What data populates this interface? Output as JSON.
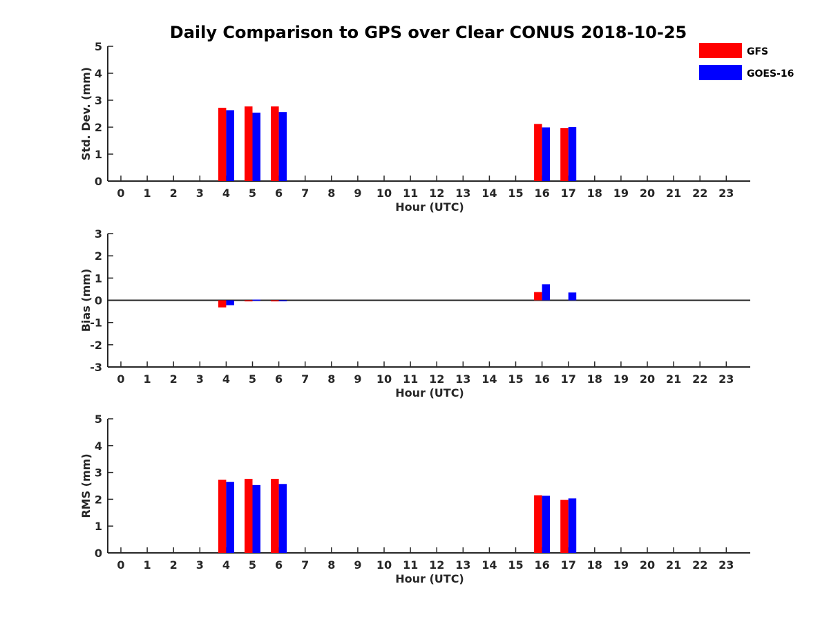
{
  "chart_data": {
    "title": "Daily Comparison to GPS over Clear CONUS 2018-10-25",
    "legend": {
      "placement": "top-right",
      "entries": [
        {
          "name": "GFS",
          "color": "#ff0000"
        },
        {
          "name": "GOES-16",
          "color": "#0000ff"
        }
      ]
    },
    "panels": [
      {
        "id": "std",
        "type": "bar",
        "xlabel": "Hour (UTC)",
        "ylabel": "Std. Dev. (mm)",
        "ylim": [
          0,
          5
        ],
        "yticks": [
          0,
          1,
          2,
          3,
          4,
          5
        ],
        "categories": [
          "0",
          "1",
          "2",
          "3",
          "4",
          "5",
          "6",
          "7",
          "8",
          "9",
          "10",
          "11",
          "12",
          "13",
          "14",
          "15",
          "16",
          "17",
          "18",
          "19",
          "20",
          "21",
          "22",
          "23"
        ],
        "series": [
          {
            "name": "GFS",
            "color": "#ff0000",
            "values": [
              null,
              null,
              null,
              null,
              2.72,
              2.77,
              2.77,
              null,
              null,
              null,
              null,
              null,
              null,
              null,
              null,
              null,
              2.12,
              1.97,
              null,
              null,
              null,
              null,
              null,
              null
            ]
          },
          {
            "name": "GOES-16",
            "color": "#0000ff",
            "values": [
              null,
              null,
              null,
              null,
              2.63,
              2.54,
              2.56,
              null,
              null,
              null,
              null,
              null,
              null,
              null,
              null,
              null,
              1.99,
              2.0,
              null,
              null,
              null,
              null,
              null,
              null
            ]
          }
        ]
      },
      {
        "id": "bias",
        "type": "bar",
        "xlabel": "Hour (UTC)",
        "ylabel": "Bias (mm)",
        "ylim": [
          -3,
          3
        ],
        "yticks": [
          -3,
          -2,
          -1,
          0,
          1,
          2,
          3
        ],
        "categories": [
          "0",
          "1",
          "2",
          "3",
          "4",
          "5",
          "6",
          "7",
          "8",
          "9",
          "10",
          "11",
          "12",
          "13",
          "14",
          "15",
          "16",
          "17",
          "18",
          "19",
          "20",
          "21",
          "22",
          "23"
        ],
        "series": [
          {
            "name": "GFS",
            "color": "#ff0000",
            "values": [
              null,
              null,
              null,
              null,
              -0.32,
              -0.05,
              -0.05,
              null,
              null,
              null,
              null,
              null,
              null,
              null,
              null,
              null,
              0.37,
              0.0,
              null,
              null,
              null,
              null,
              null,
              null
            ]
          },
          {
            "name": "GOES-16",
            "color": "#0000ff",
            "values": [
              null,
              null,
              null,
              null,
              -0.22,
              0.03,
              -0.02,
              null,
              null,
              null,
              null,
              null,
              null,
              null,
              null,
              null,
              0.72,
              0.35,
              null,
              null,
              null,
              null,
              null,
              null
            ]
          }
        ]
      },
      {
        "id": "rms",
        "type": "bar",
        "xlabel": "Hour (UTC)",
        "ylabel": "RMS (mm)",
        "ylim": [
          0,
          5
        ],
        "yticks": [
          0,
          1,
          2,
          3,
          4,
          5
        ],
        "categories": [
          "0",
          "1",
          "2",
          "3",
          "4",
          "5",
          "6",
          "7",
          "8",
          "9",
          "10",
          "11",
          "12",
          "13",
          "14",
          "15",
          "16",
          "17",
          "18",
          "19",
          "20",
          "21",
          "22",
          "23"
        ],
        "series": [
          {
            "name": "GFS",
            "color": "#ff0000",
            "values": [
              null,
              null,
              null,
              null,
              2.73,
              2.76,
              2.76,
              null,
              null,
              null,
              null,
              null,
              null,
              null,
              null,
              null,
              2.15,
              1.98,
              null,
              null,
              null,
              null,
              null,
              null
            ]
          },
          {
            "name": "GOES-16",
            "color": "#0000ff",
            "values": [
              null,
              null,
              null,
              null,
              2.65,
              2.53,
              2.57,
              null,
              null,
              null,
              null,
              null,
              null,
              null,
              null,
              null,
              2.13,
              2.03,
              null,
              null,
              null,
              null,
              null,
              null
            ]
          }
        ]
      }
    ]
  }
}
